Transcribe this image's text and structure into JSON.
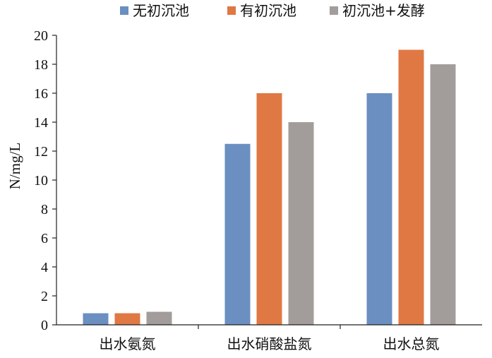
{
  "chart_data": {
    "type": "bar",
    "title": "",
    "xlabel": "",
    "ylabel": "N/mg/L",
    "ylim": [
      0,
      20
    ],
    "yticks": [
      0,
      2,
      4,
      6,
      8,
      10,
      12,
      14,
      16,
      18,
      20
    ],
    "grid": false,
    "legend_position": "top",
    "categories": [
      "出水氨氮",
      "出水硝酸盐氮",
      "出水总氮"
    ],
    "series": [
      {
        "name": "无初沉池",
        "color": "#6a8fc0",
        "values": [
          0.8,
          12.5,
          16.0
        ]
      },
      {
        "name": "有初沉池",
        "color": "#e07843",
        "values": [
          0.8,
          16.0,
          19.0
        ]
      },
      {
        "name": "初沉池+发酵",
        "color": "#a29d9a",
        "values": [
          0.9,
          14.0,
          18.0
        ]
      }
    ]
  }
}
